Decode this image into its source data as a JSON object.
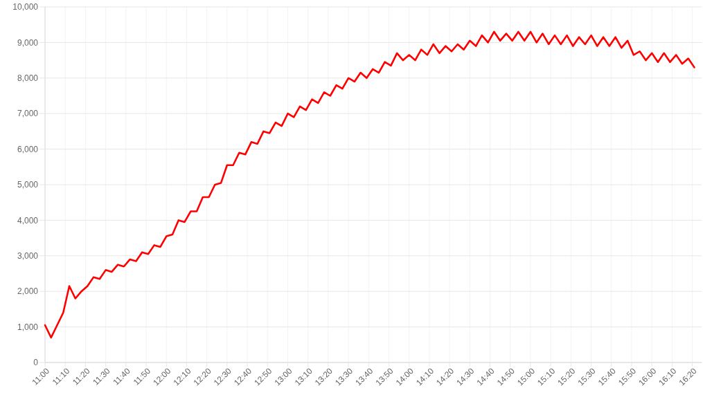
{
  "chart_data": {
    "type": "line",
    "x": [
      11,
      11.05,
      11.1,
      11.15,
      11.2,
      11.25,
      11.3,
      11.35,
      11.4,
      11.45,
      11.5,
      11.55,
      11.6,
      11.65,
      11.7,
      11.75,
      11.8,
      11.85,
      11.9,
      11.95,
      12,
      12.05,
      12.1,
      12.15,
      12.2,
      12.25,
      12.3,
      12.35,
      12.4,
      12.45,
      12.5,
      12.55,
      12.6,
      12.65,
      12.7,
      12.75,
      12.8,
      12.85,
      12.9,
      12.95,
      13,
      13.05,
      13.1,
      13.15,
      13.2,
      13.25,
      13.3,
      13.35,
      13.4,
      13.45,
      13.5,
      13.55,
      13.6,
      13.65,
      13.7,
      13.75,
      13.8,
      13.85,
      13.9,
      13.95,
      14,
      14.05,
      14.1,
      14.15,
      14.2,
      14.25,
      14.3,
      14.35,
      14.4,
      14.45,
      14.5,
      14.55,
      14.6,
      14.65,
      14.7,
      14.75,
      14.8,
      14.85,
      14.9,
      14.95,
      15,
      15.05,
      15.1,
      15.15,
      15.2,
      15.25,
      15.3,
      15.35,
      15.4,
      15.45,
      15.5,
      15.55,
      15.6,
      15.65,
      15.7,
      15.75,
      15.8,
      15.85,
      15.9,
      15.95,
      16,
      16.05,
      16.1,
      16.15,
      16.2,
      16.25,
      16.3,
      16.35
    ],
    "series": [
      {
        "color": "#ff0000",
        "values": [
          1050,
          700,
          1050,
          1400,
          2150,
          1800,
          2000,
          2150,
          2400,
          2350,
          2600,
          2550,
          2750,
          2700,
          2900,
          2850,
          3100,
          3050,
          3300,
          3250,
          3550,
          3600,
          4000,
          3950,
          4250,
          4250,
          4650,
          4650,
          5000,
          5050,
          5550,
          5550,
          5900,
          5850,
          6200,
          6150,
          6500,
          6450,
          6750,
          6650,
          7000,
          6900,
          7200,
          7100,
          7400,
          7300,
          7600,
          7500,
          7800,
          7700,
          8000,
          7900,
          8150,
          8000,
          8250,
          8150,
          8450,
          8350,
          8700,
          8500,
          8650,
          8500,
          8800,
          8650,
          8950,
          8700,
          8900,
          8750,
          8950,
          8800,
          9050,
          8900,
          9200,
          9000,
          9300,
          9050,
          9250,
          9050,
          9300,
          9050,
          9300,
          9000,
          9250,
          8950,
          9200,
          8950,
          9200,
          8900,
          9150,
          8950,
          9200,
          8900,
          9150,
          8900,
          9150,
          8850,
          9050,
          8650,
          8750,
          8500,
          8700,
          8450,
          8700,
          8450,
          8650,
          8400,
          8550,
          8300
        ]
      }
    ],
    "xlim": [
      11,
      16.41
    ],
    "xticks": [
      {
        "value": 11,
        "label": "11:00"
      },
      {
        "value": 11.1667,
        "label": "11:10"
      },
      {
        "value": 11.3333,
        "label": "11:20"
      },
      {
        "value": 11.5,
        "label": "11:30"
      },
      {
        "value": 11.6667,
        "label": "11:40"
      },
      {
        "value": 11.8333,
        "label": "11:50"
      },
      {
        "value": 12,
        "label": "12:00"
      },
      {
        "value": 12.1667,
        "label": "12:10"
      },
      {
        "value": 12.3333,
        "label": "12:20"
      },
      {
        "value": 12.5,
        "label": "12:30"
      },
      {
        "value": 12.6667,
        "label": "12:40"
      },
      {
        "value": 12.8333,
        "label": "12:50"
      },
      {
        "value": 13,
        "label": "13:00"
      },
      {
        "value": 13.1667,
        "label": "13:10"
      },
      {
        "value": 13.3333,
        "label": "13:20"
      },
      {
        "value": 13.5,
        "label": "13:30"
      },
      {
        "value": 13.6667,
        "label": "13:40"
      },
      {
        "value": 13.8333,
        "label": "13:50"
      },
      {
        "value": 14,
        "label": "14:00"
      },
      {
        "value": 14.1667,
        "label": "14:10"
      },
      {
        "value": 14.3333,
        "label": "14:20"
      },
      {
        "value": 14.5,
        "label": "14:30"
      },
      {
        "value": 14.6667,
        "label": "14:40"
      },
      {
        "value": 14.8333,
        "label": "14:50"
      },
      {
        "value": 15,
        "label": "15:00"
      },
      {
        "value": 15.1667,
        "label": "15:10"
      },
      {
        "value": 15.3333,
        "label": "15:20"
      },
      {
        "value": 15.5,
        "label": "15:30"
      },
      {
        "value": 15.6667,
        "label": "15:40"
      },
      {
        "value": 15.8333,
        "label": "15:50"
      },
      {
        "value": 16,
        "label": "16:00"
      },
      {
        "value": 16.1667,
        "label": "16:10"
      },
      {
        "value": 16.3333,
        "label": "16:20"
      }
    ],
    "ylim": [
      0,
      10000
    ],
    "yticks": [
      0,
      {
        "value": 1000,
        "label": "1,000"
      },
      {
        "value": 2000,
        "label": "2,000"
      },
      {
        "value": 3000,
        "label": "3,000"
      },
      {
        "value": 4000,
        "label": "4,000"
      },
      {
        "value": 5000,
        "label": "5,000"
      },
      {
        "value": 6000,
        "label": "6,000"
      },
      {
        "value": 7000,
        "label": "7,000"
      },
      {
        "value": 8000,
        "label": "8,000"
      },
      {
        "value": 9000,
        "label": "9,000"
      },
      {
        "value": 10000,
        "label": "10,000"
      }
    ],
    "grid": true,
    "marker": "none",
    "line_style": "solid"
  }
}
